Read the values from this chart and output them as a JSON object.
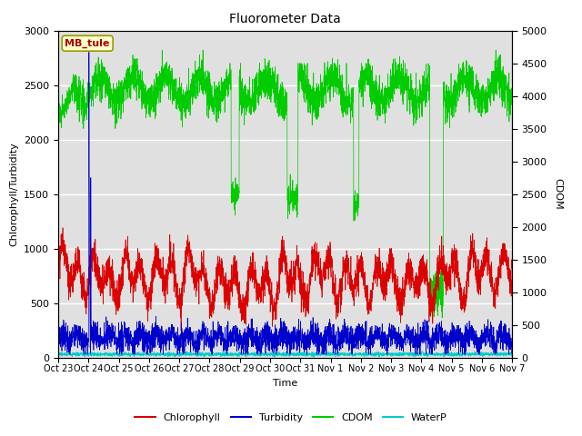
{
  "title": "Fluorometer Data",
  "xlabel": "Time",
  "ylabel_left": "Chlorophyll/Turbidity",
  "ylabel_right": "CDOM",
  "ylim_left": [
    0,
    3000
  ],
  "ylim_right": [
    0,
    5000
  ],
  "yticks_left": [
    0,
    500,
    1000,
    1500,
    2000,
    2500,
    3000
  ],
  "yticks_right": [
    0,
    500,
    1000,
    1500,
    2000,
    2500,
    3000,
    3500,
    4000,
    4500,
    5000
  ],
  "xtick_labels": [
    "Oct 23",
    "Oct 24",
    "Oct 25",
    "Oct 26",
    "Oct 27",
    "Oct 28",
    "Oct 29",
    "Oct 30",
    "Oct 31",
    "Nov 1",
    "Nov 2",
    "Nov 3",
    "Nov 4",
    "Nov 5",
    "Nov 6",
    "Nov 7"
  ],
  "color_chlorophyll": "#dd0000",
  "color_turbidity": "#0000cc",
  "color_cdom": "#00cc00",
  "color_waterp": "#00cccc",
  "annotation_text": "MB_tule",
  "annotation_color": "#aa0000",
  "annotation_bg": "#ffffcc",
  "bg_color": "#e0e0e0",
  "n_points": 3360
}
